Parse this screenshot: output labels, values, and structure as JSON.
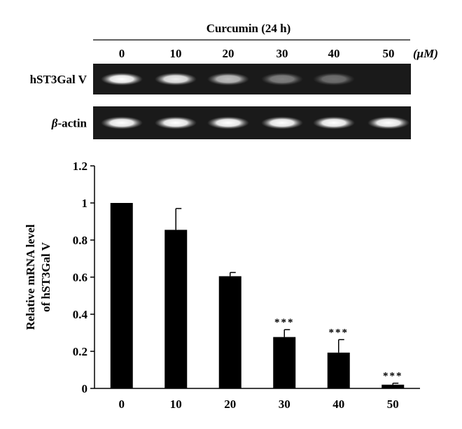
{
  "gel": {
    "treatment_label": "Curcumin (24 h)",
    "lane_labels": [
      "0",
      "10",
      "20",
      "30",
      "40",
      "50"
    ],
    "unit_label": "(μM)",
    "rows": [
      {
        "name_greek": "",
        "name": "hST3Gal V",
        "band_intensity": [
          1.0,
          0.92,
          0.72,
          0.45,
          0.38,
          0.0
        ]
      },
      {
        "name_greek": "β",
        "name": "-actin",
        "band_intensity": [
          1.0,
          1.0,
          1.0,
          1.0,
          1.0,
          1.0
        ]
      }
    ]
  },
  "chart_data": {
    "type": "bar",
    "categories": [
      "0",
      "10",
      "20",
      "30",
      "40",
      "50"
    ],
    "values": [
      1.0,
      0.855,
      0.605,
      0.277,
      0.193,
      0.02
    ],
    "error_upper": [
      0.0,
      0.115,
      0.02,
      0.04,
      0.07,
      0.008
    ],
    "significance": [
      "",
      "",
      "",
      "***",
      "***",
      "***"
    ],
    "ylabel_line1": "Relative mRNA level",
    "ylabel_line2": "of hST3Gal V",
    "xlabel": "",
    "ylim": [
      0,
      1.2
    ],
    "yticks": [
      0,
      0.2,
      0.4,
      0.6,
      0.8,
      1.0,
      1.2
    ],
    "ytick_labels": [
      "0",
      "0.2",
      "0.4",
      "0.6",
      "0.8",
      "1",
      "1.2"
    ],
    "grid": false,
    "bar_color": "#000000"
  }
}
